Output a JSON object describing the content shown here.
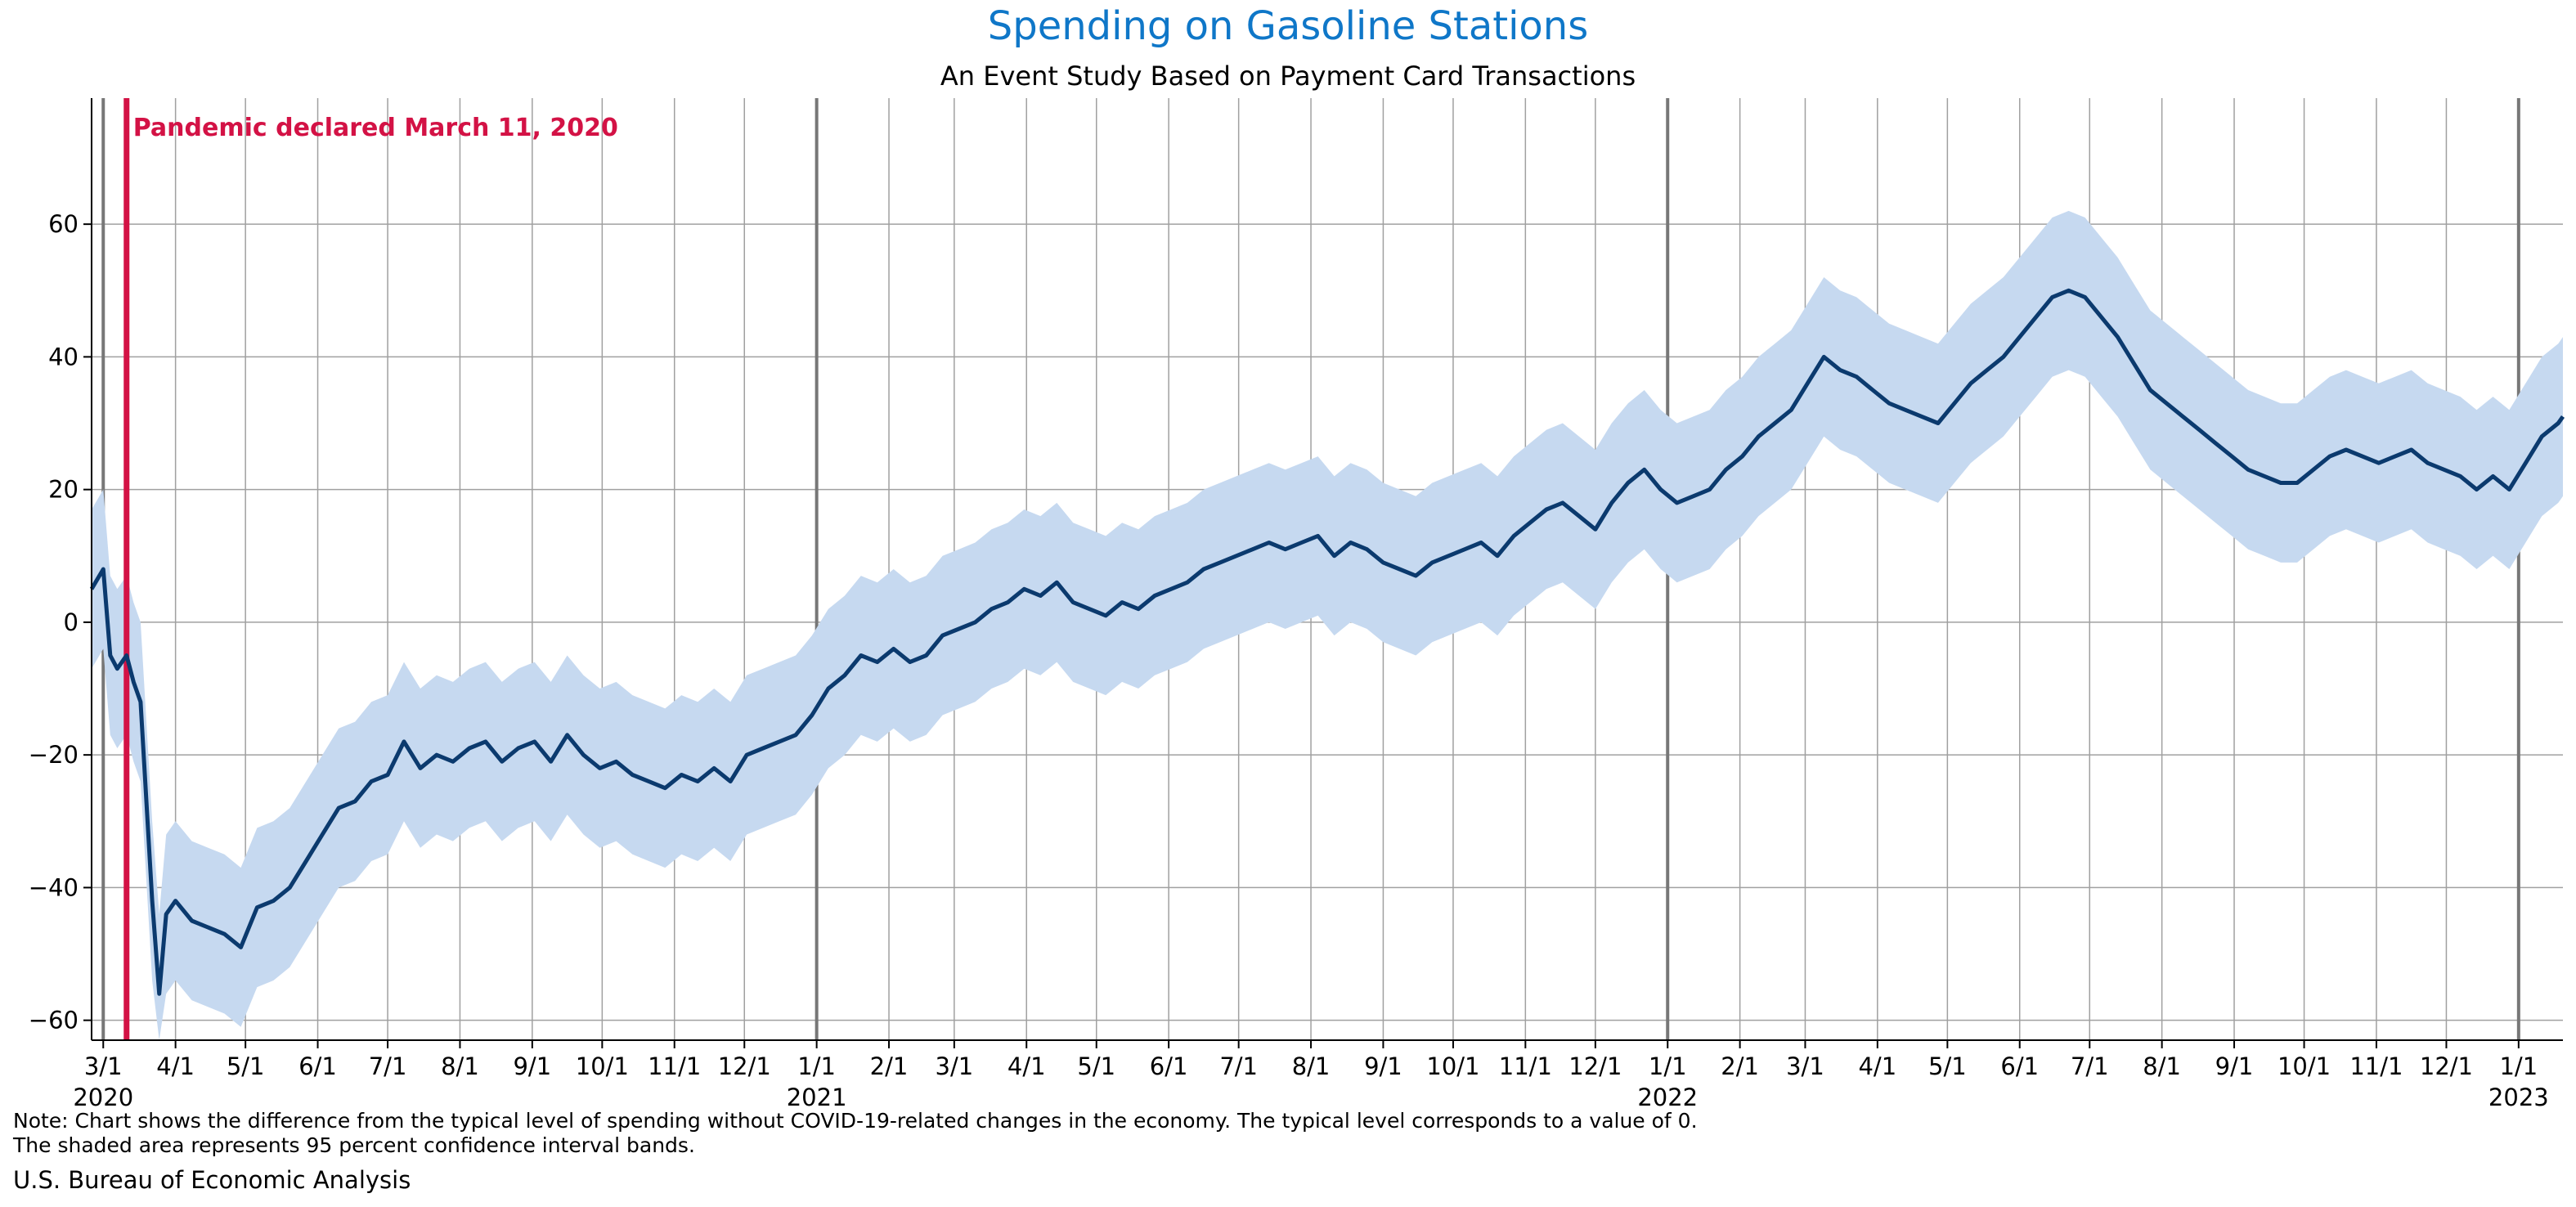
{
  "title": "Spending on Gasoline Stations",
  "subtitle": "An Event Study Based on Payment Card Transactions",
  "note_line1": "Note: Chart shows the difference from the typical level of spending without COVID-19-related changes in the economy. The typical level corresponds to a value of 0.",
  "note_line2": "The shaded area represents 95 percent confidence interval bands.",
  "source": "U.S. Bureau of Economic Analysis",
  "colors": {
    "title": "#0f77c8",
    "line": "#0b3a6e",
    "band": "#c6d9f0",
    "event": "#d31245",
    "grid": "#a0a0a0",
    "year_line": "#777777"
  },
  "chart_data": {
    "type": "line",
    "title": "Spending on Gasoline Stations",
    "subtitle": "An Event Study Based on Payment Card Transactions",
    "xlabel": "",
    "ylabel": "",
    "x_range": [
      "2020-02-25",
      "2023-01-20"
    ],
    "ylim": [
      -63,
      79
    ],
    "y_ticks": [
      -60,
      -40,
      -20,
      0,
      20,
      40,
      60
    ],
    "grid": true,
    "event": {
      "date": "2020-03-11",
      "label": "Pandemic declared March 11, 2020"
    },
    "x_ticks": [
      {
        "date": "2020-03-01",
        "label": "3/1",
        "year": "2020"
      },
      {
        "date": "2020-04-01",
        "label": "4/1"
      },
      {
        "date": "2020-05-01",
        "label": "5/1"
      },
      {
        "date": "2020-06-01",
        "label": "6/1"
      },
      {
        "date": "2020-07-01",
        "label": "7/1"
      },
      {
        "date": "2020-08-01",
        "label": "8/1"
      },
      {
        "date": "2020-09-01",
        "label": "9/1"
      },
      {
        "date": "2020-10-01",
        "label": "10/1"
      },
      {
        "date": "2020-11-01",
        "label": "11/1"
      },
      {
        "date": "2020-12-01",
        "label": "12/1"
      },
      {
        "date": "2021-01-01",
        "label": "1/1",
        "year": "2021"
      },
      {
        "date": "2021-02-01",
        "label": "2/1"
      },
      {
        "date": "2021-03-01",
        "label": "3/1"
      },
      {
        "date": "2021-04-01",
        "label": "4/1"
      },
      {
        "date": "2021-05-01",
        "label": "5/1"
      },
      {
        "date": "2021-06-01",
        "label": "6/1"
      },
      {
        "date": "2021-07-01",
        "label": "7/1"
      },
      {
        "date": "2021-08-01",
        "label": "8/1"
      },
      {
        "date": "2021-09-01",
        "label": "9/1"
      },
      {
        "date": "2021-10-01",
        "label": "10/1"
      },
      {
        "date": "2021-11-01",
        "label": "11/1"
      },
      {
        "date": "2021-12-01",
        "label": "12/1"
      },
      {
        "date": "2022-01-01",
        "label": "1/1",
        "year": "2022"
      },
      {
        "date": "2022-02-01",
        "label": "2/1"
      },
      {
        "date": "2022-03-01",
        "label": "3/1"
      },
      {
        "date": "2022-04-01",
        "label": "4/1"
      },
      {
        "date": "2022-05-01",
        "label": "5/1"
      },
      {
        "date": "2022-06-01",
        "label": "6/1"
      },
      {
        "date": "2022-07-01",
        "label": "7/1"
      },
      {
        "date": "2022-08-01",
        "label": "8/1"
      },
      {
        "date": "2022-09-01",
        "label": "9/1"
      },
      {
        "date": "2022-10-01",
        "label": "10/1"
      },
      {
        "date": "2022-11-01",
        "label": "11/1"
      },
      {
        "date": "2022-12-01",
        "label": "12/1"
      },
      {
        "date": "2023-01-01",
        "label": "1/1",
        "year": "2023"
      }
    ],
    "band_half_width": 12,
    "series": [
      {
        "values": [
          [
            "2020-02-25",
            5
          ],
          [
            "2020-03-01",
            8
          ],
          [
            "2020-03-04",
            -5
          ],
          [
            "2020-03-07",
            -7
          ],
          [
            "2020-03-11",
            -5
          ],
          [
            "2020-03-14",
            -9
          ],
          [
            "2020-03-17",
            -12
          ],
          [
            "2020-03-19",
            -24
          ],
          [
            "2020-03-22",
            -42
          ],
          [
            "2020-03-25",
            -56
          ],
          [
            "2020-03-28",
            -44
          ],
          [
            "2020-04-01",
            -42
          ],
          [
            "2020-04-08",
            -45
          ],
          [
            "2020-04-15",
            -46
          ],
          [
            "2020-04-22",
            -47
          ],
          [
            "2020-04-29",
            -49
          ],
          [
            "2020-05-06",
            -43
          ],
          [
            "2020-05-13",
            -42
          ],
          [
            "2020-05-20",
            -40
          ],
          [
            "2020-05-27",
            -36
          ],
          [
            "2020-06-03",
            -32
          ],
          [
            "2020-06-10",
            -28
          ],
          [
            "2020-06-17",
            -27
          ],
          [
            "2020-06-24",
            -24
          ],
          [
            "2020-07-01",
            -23
          ],
          [
            "2020-07-08",
            -18
          ],
          [
            "2020-07-15",
            -22
          ],
          [
            "2020-07-22",
            -20
          ],
          [
            "2020-07-29",
            -21
          ],
          [
            "2020-08-05",
            -19
          ],
          [
            "2020-08-12",
            -18
          ],
          [
            "2020-08-19",
            -21
          ],
          [
            "2020-08-26",
            -19
          ],
          [
            "2020-09-02",
            -18
          ],
          [
            "2020-09-09",
            -21
          ],
          [
            "2020-09-16",
            -17
          ],
          [
            "2020-09-23",
            -20
          ],
          [
            "2020-09-30",
            -22
          ],
          [
            "2020-10-07",
            -21
          ],
          [
            "2020-10-14",
            -23
          ],
          [
            "2020-10-21",
            -24
          ],
          [
            "2020-10-28",
            -25
          ],
          [
            "2020-11-04",
            -23
          ],
          [
            "2020-11-11",
            -24
          ],
          [
            "2020-11-18",
            -22
          ],
          [
            "2020-11-25",
            -24
          ],
          [
            "2020-12-02",
            -20
          ],
          [
            "2020-12-09",
            -19
          ],
          [
            "2020-12-16",
            -18
          ],
          [
            "2020-12-23",
            -17
          ],
          [
            "2020-12-30",
            -14
          ],
          [
            "2021-01-06",
            -10
          ],
          [
            "2021-01-13",
            -8
          ],
          [
            "2021-01-20",
            -5
          ],
          [
            "2021-01-27",
            -6
          ],
          [
            "2021-02-03",
            -4
          ],
          [
            "2021-02-10",
            -6
          ],
          [
            "2021-02-17",
            -5
          ],
          [
            "2021-02-24",
            -2
          ],
          [
            "2021-03-03",
            -1
          ],
          [
            "2021-03-10",
            0
          ],
          [
            "2021-03-17",
            2
          ],
          [
            "2021-03-24",
            3
          ],
          [
            "2021-03-31",
            5
          ],
          [
            "2021-04-07",
            4
          ],
          [
            "2021-04-14",
            6
          ],
          [
            "2021-04-21",
            3
          ],
          [
            "2021-04-28",
            2
          ],
          [
            "2021-05-05",
            1
          ],
          [
            "2021-05-12",
            3
          ],
          [
            "2021-05-19",
            2
          ],
          [
            "2021-05-26",
            4
          ],
          [
            "2021-06-02",
            5
          ],
          [
            "2021-06-09",
            6
          ],
          [
            "2021-06-16",
            8
          ],
          [
            "2021-06-23",
            9
          ],
          [
            "2021-06-30",
            10
          ],
          [
            "2021-07-07",
            11
          ],
          [
            "2021-07-14",
            12
          ],
          [
            "2021-07-21",
            11
          ],
          [
            "2021-07-28",
            12
          ],
          [
            "2021-08-04",
            13
          ],
          [
            "2021-08-11",
            10
          ],
          [
            "2021-08-18",
            12
          ],
          [
            "2021-08-25",
            11
          ],
          [
            "2021-09-01",
            9
          ],
          [
            "2021-09-08",
            8
          ],
          [
            "2021-09-15",
            7
          ],
          [
            "2021-09-22",
            9
          ],
          [
            "2021-09-29",
            10
          ],
          [
            "2021-10-06",
            11
          ],
          [
            "2021-10-13",
            12
          ],
          [
            "2021-10-20",
            10
          ],
          [
            "2021-10-27",
            13
          ],
          [
            "2021-11-03",
            15
          ],
          [
            "2021-11-10",
            17
          ],
          [
            "2021-11-17",
            18
          ],
          [
            "2021-11-24",
            16
          ],
          [
            "2021-12-01",
            14
          ],
          [
            "2021-12-08",
            18
          ],
          [
            "2021-12-15",
            21
          ],
          [
            "2021-12-22",
            23
          ],
          [
            "2021-12-29",
            20
          ],
          [
            "2022-01-05",
            18
          ],
          [
            "2022-01-12",
            19
          ],
          [
            "2022-01-19",
            20
          ],
          [
            "2022-01-26",
            23
          ],
          [
            "2022-02-02",
            25
          ],
          [
            "2022-02-09",
            28
          ],
          [
            "2022-02-16",
            30
          ],
          [
            "2022-02-23",
            32
          ],
          [
            "2022-03-02",
            36
          ],
          [
            "2022-03-09",
            40
          ],
          [
            "2022-03-16",
            38
          ],
          [
            "2022-03-23",
            37
          ],
          [
            "2022-03-30",
            35
          ],
          [
            "2022-04-06",
            33
          ],
          [
            "2022-04-13",
            32
          ],
          [
            "2022-04-20",
            31
          ],
          [
            "2022-04-27",
            30
          ],
          [
            "2022-05-04",
            33
          ],
          [
            "2022-05-11",
            36
          ],
          [
            "2022-05-18",
            38
          ],
          [
            "2022-05-25",
            40
          ],
          [
            "2022-06-01",
            43
          ],
          [
            "2022-06-08",
            46
          ],
          [
            "2022-06-15",
            49
          ],
          [
            "2022-06-22",
            50
          ],
          [
            "2022-06-29",
            49
          ],
          [
            "2022-07-06",
            46
          ],
          [
            "2022-07-13",
            43
          ],
          [
            "2022-07-20",
            39
          ],
          [
            "2022-07-27",
            35
          ],
          [
            "2022-08-03",
            33
          ],
          [
            "2022-08-10",
            31
          ],
          [
            "2022-08-17",
            29
          ],
          [
            "2022-08-24",
            27
          ],
          [
            "2022-08-31",
            25
          ],
          [
            "2022-09-07",
            23
          ],
          [
            "2022-09-14",
            22
          ],
          [
            "2022-09-21",
            21
          ],
          [
            "2022-09-28",
            21
          ],
          [
            "2022-10-05",
            23
          ],
          [
            "2022-10-12",
            25
          ],
          [
            "2022-10-19",
            26
          ],
          [
            "2022-10-26",
            25
          ],
          [
            "2022-11-02",
            24
          ],
          [
            "2022-11-09",
            25
          ],
          [
            "2022-11-16",
            26
          ],
          [
            "2022-11-23",
            24
          ],
          [
            "2022-11-30",
            23
          ],
          [
            "2022-12-07",
            22
          ],
          [
            "2022-12-14",
            20
          ],
          [
            "2022-12-21",
            22
          ],
          [
            "2022-12-28",
            20
          ],
          [
            "2023-01-04",
            24
          ],
          [
            "2023-01-11",
            28
          ],
          [
            "2023-01-18",
            30
          ],
          [
            "2023-01-20",
            31
          ]
        ]
      }
    ]
  }
}
